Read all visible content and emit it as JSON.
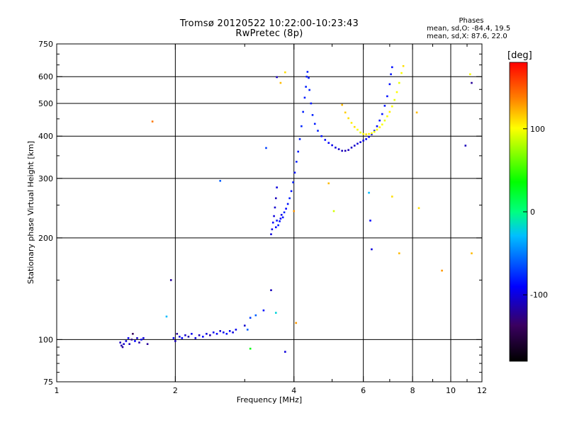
{
  "title": {
    "line1": "Tromsø 20120522 10:22:00-10:23:43",
    "line2": "RwPretec (8p)"
  },
  "phases_box": {
    "heading": "Phases",
    "row1": "mean, sd,O: -84.4, 19.5",
    "row2": "mean, sd,X:  87.6, 22.0"
  },
  "colorbar": {
    "label": "[deg]",
    "min": -180,
    "max": 180,
    "ticks": [
      {
        "value": 100,
        "label": "100"
      },
      {
        "value": 0,
        "label": "0"
      },
      {
        "value": -100,
        "label": "-100"
      }
    ]
  },
  "chart_data": {
    "type": "scatter",
    "xlabel": "Frequency [MHz]",
    "ylabel": "Stationary phase Virtual Height [km]",
    "xscale": "log",
    "yscale": "log",
    "xlim": [
      1,
      12
    ],
    "ylim": [
      75,
      750
    ],
    "grid": true,
    "x_ticks": [
      {
        "value": 1,
        "label": "1"
      },
      {
        "value": 2,
        "label": "2"
      },
      {
        "value": 4,
        "label": "4"
      },
      {
        "value": 6,
        "label": "6"
      },
      {
        "value": 8,
        "label": "8"
      },
      {
        "value": 10,
        "label": "10"
      },
      {
        "value": 12,
        "label": "12"
      }
    ],
    "y_ticks": [
      {
        "value": 75,
        "label": "75"
      },
      {
        "value": 100,
        "label": "100"
      },
      {
        "value": 200,
        "label": "200"
      },
      {
        "value": 300,
        "label": "300"
      },
      {
        "value": 400,
        "label": "400"
      },
      {
        "value": 500,
        "label": "500"
      },
      {
        "value": 600,
        "label": "600"
      },
      {
        "value": 750,
        "label": "750"
      }
    ],
    "x_minor_ticks": [
      3,
      5,
      7,
      9,
      11
    ],
    "y_minor_ticks": [
      80,
      85,
      90,
      95,
      150,
      250,
      350,
      450,
      550,
      650,
      700
    ],
    "color_encodes": "phase [deg]",
    "points": [
      [
        1.45,
        98,
        -110
      ],
      [
        1.46,
        96,
        -115
      ],
      [
        1.47,
        95,
        -120
      ],
      [
        1.48,
        97,
        -105
      ],
      [
        1.5,
        99,
        -100
      ],
      [
        1.52,
        101,
        -95
      ],
      [
        1.53,
        97,
        -110
      ],
      [
        1.55,
        100,
        -125
      ],
      [
        1.56,
        104,
        -140
      ],
      [
        1.58,
        99,
        -90
      ],
      [
        1.6,
        101,
        -105
      ],
      [
        1.62,
        98,
        -115
      ],
      [
        1.64,
        100,
        -95
      ],
      [
        1.66,
        101,
        -100
      ],
      [
        1.7,
        97,
        -120
      ],
      [
        1.98,
        101,
        -95
      ],
      [
        2.0,
        99,
        -110
      ],
      [
        2.02,
        104,
        -120
      ],
      [
        2.05,
        102,
        -100
      ],
      [
        2.08,
        101,
        -90
      ],
      [
        2.12,
        103,
        -105
      ],
      [
        2.16,
        102,
        -115
      ],
      [
        2.2,
        104,
        -95
      ],
      [
        2.25,
        101,
        -100
      ],
      [
        2.3,
        103,
        -110
      ],
      [
        2.35,
        102,
        -90
      ],
      [
        2.4,
        104,
        -100
      ],
      [
        2.45,
        103,
        -115
      ],
      [
        2.5,
        105,
        -95
      ],
      [
        2.55,
        104,
        -90
      ],
      [
        2.6,
        106,
        -100
      ],
      [
        2.65,
        105,
        -95
      ],
      [
        2.7,
        104,
        -85
      ],
      [
        2.75,
        106,
        -90
      ],
      [
        2.8,
        105,
        -100
      ],
      [
        2.85,
        107,
        -95
      ],
      [
        3.0,
        110,
        -105
      ],
      [
        3.1,
        116,
        -70
      ],
      [
        3.2,
        118,
        -60
      ],
      [
        3.35,
        122,
        -85
      ],
      [
        3.5,
        205,
        -100
      ],
      [
        3.52,
        212,
        -95
      ],
      [
        3.54,
        222,
        -90
      ],
      [
        3.56,
        232,
        -100
      ],
      [
        3.58,
        246,
        -105
      ],
      [
        3.6,
        262,
        -110
      ],
      [
        3.62,
        282,
        -100
      ],
      [
        3.6,
        215,
        -90
      ],
      [
        3.62,
        225,
        -85
      ],
      [
        3.65,
        218,
        -80
      ],
      [
        3.68,
        224,
        -85
      ],
      [
        3.7,
        228,
        -90
      ],
      [
        3.72,
        234,
        -95
      ],
      [
        3.75,
        230,
        -85
      ],
      [
        3.78,
        238,
        -80
      ],
      [
        3.82,
        244,
        -90
      ],
      [
        3.86,
        252,
        -85
      ],
      [
        3.9,
        262,
        -80
      ],
      [
        3.94,
        275,
        -85
      ],
      [
        3.98,
        292,
        -80
      ],
      [
        4.02,
        312,
        -85
      ],
      [
        4.06,
        336,
        -80
      ],
      [
        4.1,
        360,
        -82
      ],
      [
        4.14,
        392,
        -80
      ],
      [
        4.18,
        428,
        -78
      ],
      [
        4.22,
        472,
        -80
      ],
      [
        4.26,
        520,
        -82
      ],
      [
        4.29,
        560,
        -80
      ],
      [
        4.31,
        600,
        -82
      ],
      [
        4.33,
        620,
        -80
      ],
      [
        4.36,
        595,
        -82
      ],
      [
        4.38,
        548,
        -80
      ],
      [
        4.42,
        500,
        -82
      ],
      [
        4.46,
        462,
        -80
      ],
      [
        4.52,
        435,
        -82
      ],
      [
        4.6,
        415,
        -80
      ],
      [
        4.7,
        400,
        -85
      ],
      [
        4.8,
        390,
        -88
      ],
      [
        4.9,
        382,
        -90
      ],
      [
        5.0,
        376,
        -95
      ],
      [
        5.1,
        370,
        -100
      ],
      [
        5.2,
        366,
        -105
      ],
      [
        5.3,
        362,
        -110
      ],
      [
        5.4,
        362,
        -112
      ],
      [
        5.5,
        364,
        -110
      ],
      [
        5.6,
        370,
        -108
      ],
      [
        5.7,
        375,
        -105
      ],
      [
        5.8,
        380,
        -102
      ],
      [
        5.9,
        384,
        -100
      ],
      [
        6.0,
        388,
        -98
      ],
      [
        6.1,
        392,
        -96
      ],
      [
        6.2,
        398,
        -95
      ],
      [
        6.3,
        405,
        -92
      ],
      [
        6.4,
        415,
        -90
      ],
      [
        6.5,
        428,
        -88
      ],
      [
        6.6,
        445,
        -86
      ],
      [
        6.7,
        465,
        -84
      ],
      [
        6.8,
        492,
        -84
      ],
      [
        6.9,
        525,
        -85
      ],
      [
        7.0,
        570,
        -86
      ],
      [
        7.05,
        610,
        -85
      ],
      [
        7.1,
        640,
        -86
      ],
      [
        5.3,
        495,
        120
      ],
      [
        5.4,
        470,
        115
      ],
      [
        5.5,
        452,
        110
      ],
      [
        5.6,
        438,
        105
      ],
      [
        5.7,
        426,
        110
      ],
      [
        5.8,
        418,
        100
      ],
      [
        5.9,
        410,
        95
      ],
      [
        6.0,
        406,
        100
      ],
      [
        6.1,
        405,
        110
      ],
      [
        6.2,
        406,
        105
      ],
      [
        6.3,
        408,
        100
      ],
      [
        6.4,
        412,
        95
      ],
      [
        6.5,
        418,
        100
      ],
      [
        6.6,
        425,
        105
      ],
      [
        6.7,
        433,
        100
      ],
      [
        6.8,
        445,
        95
      ],
      [
        6.9,
        458,
        100
      ],
      [
        7.0,
        472,
        105
      ],
      [
        7.1,
        490,
        100
      ],
      [
        7.2,
        512,
        95
      ],
      [
        7.3,
        540,
        100
      ],
      [
        7.4,
        575,
        95
      ],
      [
        7.5,
        615,
        100
      ],
      [
        7.58,
        645,
        110
      ],
      [
        3.62,
        598,
        -110
      ],
      [
        3.8,
        618,
        110
      ],
      [
        3.7,
        575,
        120
      ],
      [
        4.9,
        290,
        120
      ],
      [
        5.05,
        240,
        90
      ],
      [
        6.2,
        272,
        -30
      ],
      [
        6.25,
        225,
        -90
      ],
      [
        6.3,
        185,
        -100
      ],
      [
        7.4,
        180,
        120
      ],
      [
        7.1,
        265,
        110
      ],
      [
        8.2,
        470,
        120
      ],
      [
        8.3,
        245,
        110
      ],
      [
        9.5,
        160,
        130
      ],
      [
        11.2,
        610,
        100
      ],
      [
        11.3,
        575,
        -120
      ],
      [
        11.3,
        180,
        120
      ],
      [
        10.9,
        375,
        -110
      ],
      [
        3.5,
        140,
        -110
      ],
      [
        3.6,
        120,
        -20
      ],
      [
        3.8,
        92,
        -100
      ],
      [
        4.05,
        112,
        130
      ],
      [
        1.75,
        442,
        140
      ],
      [
        1.9,
        117,
        -30
      ],
      [
        1.95,
        150,
        -120
      ],
      [
        2.6,
        295,
        -60
      ],
      [
        3.1,
        94,
        30
      ],
      [
        4.0,
        240,
        130
      ],
      [
        3.4,
        369,
        -70
      ],
      [
        3.05,
        107,
        -60
      ]
    ]
  }
}
